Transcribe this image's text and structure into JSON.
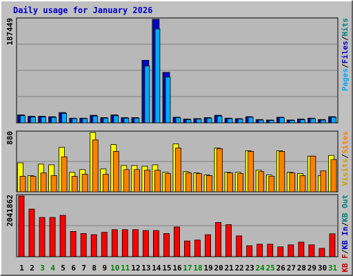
{
  "chart_data": {
    "type": "bar",
    "title": "Daily usage for January 2026",
    "categories": [
      "1",
      "2",
      "3",
      "4",
      "5",
      "6",
      "7",
      "8",
      "9",
      "10",
      "11",
      "12",
      "13",
      "14",
      "15",
      "16",
      "17",
      "18",
      "19",
      "20",
      "21",
      "22",
      "23",
      "24",
      "25",
      "26",
      "27",
      "28",
      "29",
      "30",
      "31"
    ],
    "weekend_days": [
      "3",
      "4",
      "10",
      "11",
      "17",
      "18",
      "24",
      "25",
      "31"
    ],
    "panels": [
      {
        "id": "requests",
        "ytick": "187449",
        "ymax": 187449,
        "legend": [
          {
            "text": "Pages",
            "color": "#00aaff"
          },
          {
            "text": "/",
            "color": "#000000"
          },
          {
            "text": "Files",
            "color": "#0000cc"
          },
          {
            "text": "/",
            "color": "#000000"
          },
          {
            "text": "Hits",
            "color": "#008080"
          }
        ],
        "series": [
          {
            "name": "Hits",
            "color": "#00ccff",
            "values": [
              14300,
              11800,
              11800,
              11000,
              18500,
              8400,
              8400,
              13500,
              9400,
              14300,
              9400,
              9400,
              113200,
              187449,
              91300,
              10100,
              6700,
              7600,
              9400,
              13500,
              8400,
              7600,
              11000,
              5900,
              5000,
              10100,
              5000,
              6700,
              8400,
              5900,
              11000
            ]
          },
          {
            "name": "Files",
            "color": "#0000cc",
            "values": [
              14300,
              11800,
              11800,
              11000,
              18500,
              8400,
              8400,
              13500,
              9400,
              14300,
              9400,
              9400,
              113200,
              187449,
              91300,
              10100,
              6700,
              7600,
              9400,
              13500,
              8400,
              7600,
              11000,
              5900,
              5000,
              10100,
              5000,
              6700,
              8400,
              5900,
              11000
            ]
          },
          {
            "name": "Pages",
            "color": "#00aaff",
            "values": [
              13000,
              10500,
              10500,
              9800,
              17000,
              7600,
              7600,
              12200,
              8400,
              13000,
              8400,
              8400,
              103000,
              170000,
              83000,
              9200,
              5900,
              6700,
              8400,
              12200,
              7600,
              6700,
              10100,
              5000,
              4200,
              9200,
              4200,
              5900,
              7600,
              5000,
              10100
            ]
          }
        ]
      },
      {
        "id": "visits",
        "ytick": "880",
        "ymax": 880,
        "legend": [
          {
            "text": "Visits",
            "color": "#c8a000"
          },
          {
            "text": "/",
            "color": "#000000"
          },
          {
            "text": "Sites",
            "color": "#ff8000"
          }
        ],
        "series": [
          {
            "name": "Visits",
            "color": "#ffff00",
            "values": [
              430,
              240,
              410,
              400,
              660,
              290,
              330,
              880,
              340,
              700,
              390,
              390,
              380,
              400,
              290,
              710,
              300,
              280,
              250,
              650,
              290,
              290,
              610,
              320,
              250,
              610,
              290,
              270,
              530,
              240,
              540
            ]
          },
          {
            "name": "Sites",
            "color": "#ff8000",
            "values": [
              230,
              230,
              280,
              240,
              520,
              230,
              260,
              770,
              260,
              600,
              330,
              330,
              320,
              320,
              270,
              650,
              280,
              270,
              240,
              640,
              280,
              270,
              600,
              300,
              230,
              600,
              280,
              240,
              530,
              310,
              480
            ]
          }
        ]
      },
      {
        "id": "traffic",
        "ytick": "2041862",
        "ymax": 2041862,
        "legend": [
          {
            "text": "KB F",
            "color": "#cc0000"
          },
          {
            "text": "/",
            "color": "#000000"
          },
          {
            "text": "KB In",
            "color": "#0000cc"
          },
          {
            "text": "/",
            "color": "#000000"
          },
          {
            "text": "KB Out",
            "color": "#008080"
          }
        ],
        "series": [
          {
            "name": "KB F",
            "color": "#ff0000",
            "values": [
              2041862,
              1600000,
              1320000,
              1320000,
              1390000,
              850000,
              780000,
              740000,
              820000,
              910000,
              910000,
              910000,
              880000,
              880000,
              780000,
              1000000,
              530000,
              560000,
              740000,
              1150000,
              1080000,
              700000,
              370000,
              420000,
              420000,
              330000,
              400000,
              490000,
              400000,
              280000,
              770000
            ]
          }
        ]
      }
    ]
  }
}
